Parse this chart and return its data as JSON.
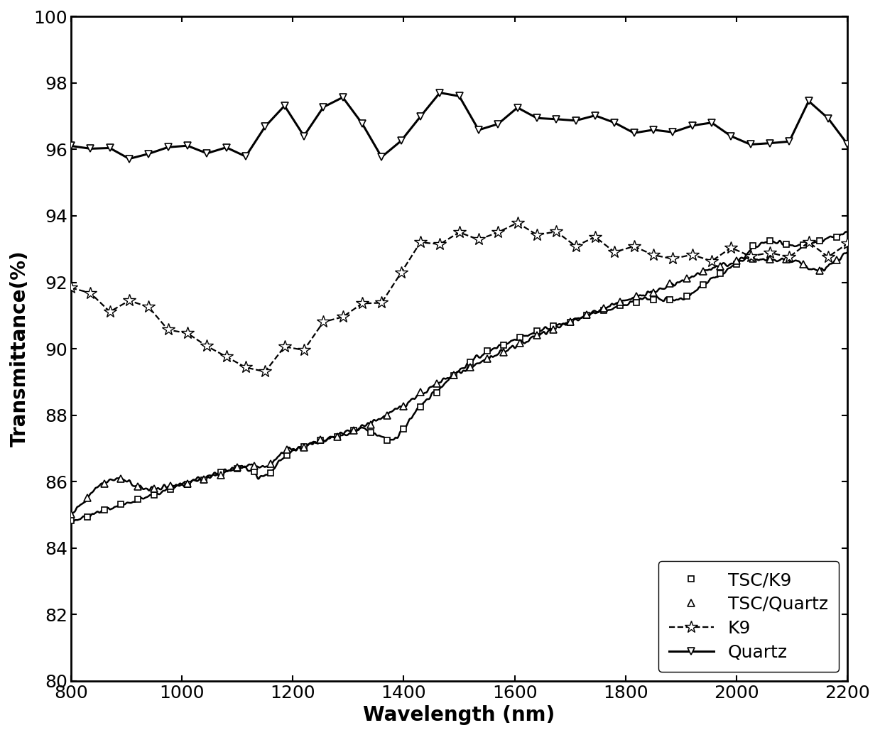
{
  "title": "",
  "xlabel": "Wavelength (nm)",
  "ylabel": "Transmittance(%)",
  "xlim": [
    800,
    2200
  ],
  "ylim": [
    80,
    100
  ],
  "yticks": [
    80,
    82,
    84,
    86,
    88,
    90,
    92,
    94,
    96,
    98,
    100
  ],
  "xticks": [
    800,
    1000,
    1200,
    1400,
    1600,
    1800,
    2000,
    2200
  ],
  "background_color": "#ffffff",
  "font_size": 18,
  "label_fontsize": 20,
  "tick_fontsize": 18,
  "legend_loc": "lower right",
  "series": {
    "TSC/K9": {
      "color": "#000000",
      "linewidth": 1.8,
      "linestyle": "-",
      "marker": "s",
      "markersize": 6,
      "markerfacecolor": "white",
      "markeredgecolor": "black",
      "markeredgewidth": 1.2
    },
    "TSC/Quartz": {
      "color": "#000000",
      "linewidth": 1.8,
      "linestyle": "-",
      "marker": "^",
      "markersize": 7,
      "markerfacecolor": "white",
      "markeredgecolor": "black",
      "markeredgewidth": 1.2
    },
    "K9": {
      "color": "#000000",
      "linewidth": 1.6,
      "linestyle": "--",
      "marker": "*",
      "markersize": 13,
      "markerfacecolor": "white",
      "markeredgecolor": "black",
      "markeredgewidth": 1.0
    },
    "Quartz": {
      "color": "#000000",
      "linewidth": 2.2,
      "linestyle": "-",
      "marker": "v",
      "markersize": 7,
      "markerfacecolor": "white",
      "markeredgecolor": "black",
      "markeredgewidth": 1.2
    }
  }
}
